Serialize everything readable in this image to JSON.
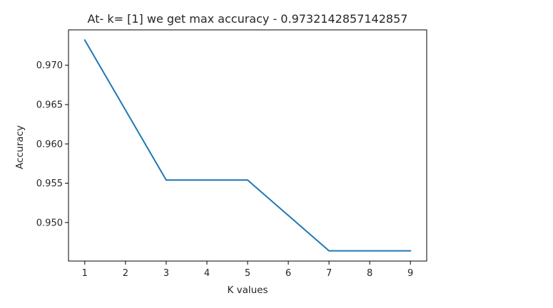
{
  "chart_data": {
    "type": "line",
    "title": "At- k= [1] we get max accuracy - 0.9732142857142857",
    "xlabel": "K values",
    "ylabel": "Accuracy",
    "x": [
      1,
      2,
      3,
      4,
      5,
      6,
      7,
      8,
      9
    ],
    "series": [
      {
        "values": [
          0.9732,
          0.9643,
          0.9554,
          0.9554,
          0.9554,
          0.9509,
          0.9464,
          0.9464,
          0.9464
        ],
        "color": "#1f77b4"
      }
    ],
    "xticks": [
      "1",
      "2",
      "3",
      "4",
      "5",
      "6",
      "7",
      "8",
      "9"
    ],
    "yticks": [
      "0.950",
      "0.955",
      "0.960",
      "0.965",
      "0.970"
    ],
    "xlim": [
      0.6,
      9.4
    ],
    "ylim": [
      0.9451,
      0.9745
    ],
    "grid": false,
    "legend": "none"
  }
}
